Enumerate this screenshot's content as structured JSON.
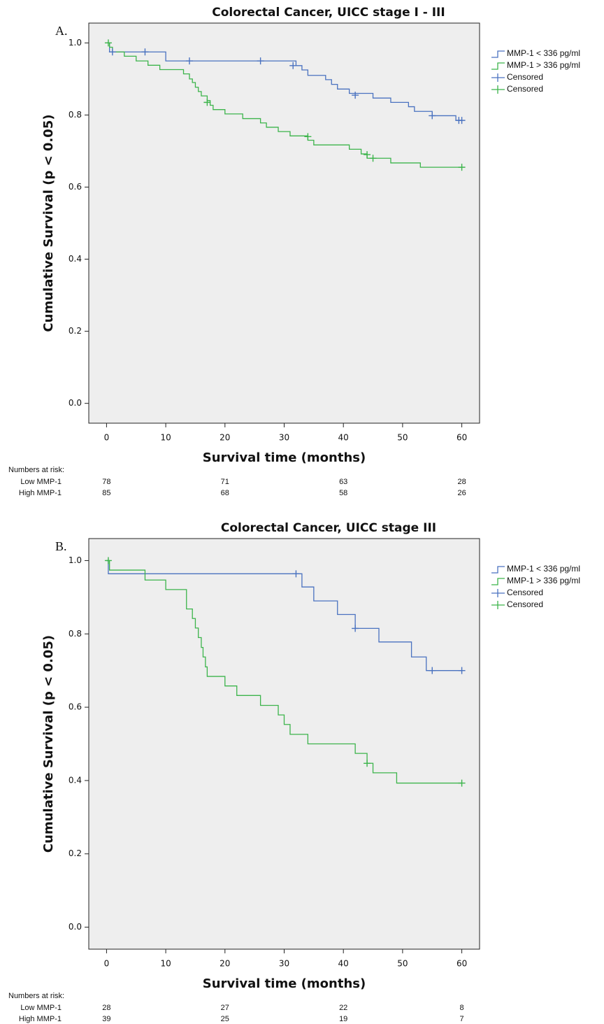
{
  "chart_data": [
    {
      "type": "line",
      "step": "post",
      "panel_label": "A.",
      "title": "Colorectal Cancer, UICC stage I - III",
      "x_label": "Survival time (months)",
      "y_label": "Cumulative Survival (p < 0.05)",
      "xlim": [
        -3,
        63
      ],
      "ylim": [
        -0.055,
        1.055
      ],
      "xticks": [
        0,
        10,
        20,
        30,
        40,
        50,
        60
      ],
      "yticks": [
        {
          "value": 0,
          "label": "0.0"
        },
        0.2,
        0.4,
        0.6,
        0.8,
        {
          "value": 1,
          "label": "1.0"
        }
      ],
      "grid": false,
      "legend": "right",
      "series": [
        {
          "name": "MMP-1 < 336 pg/ml",
          "color": "#4a72c0",
          "style": "step",
          "x": [
            0,
            0.5,
            10,
            32,
            33,
            34,
            37,
            38,
            39,
            41,
            45,
            48,
            51,
            52,
            55,
            59,
            60
          ],
          "values": [
            1.0,
            0.975,
            0.95,
            0.937,
            0.925,
            0.91,
            0.898,
            0.885,
            0.872,
            0.86,
            0.847,
            0.835,
            0.823,
            0.81,
            0.798,
            0.785,
            0.785
          ]
        },
        {
          "name": "MMP-1 > 336 pg/ml",
          "color": "#3cb44b",
          "style": "step",
          "x": [
            0,
            0.5,
            1,
            3,
            5,
            7,
            9,
            13,
            14,
            14.5,
            15,
            15.5,
            16,
            17,
            17.5,
            18,
            20,
            23,
            26,
            27,
            29,
            31,
            34,
            35,
            41,
            43,
            44,
            48,
            53,
            60
          ],
          "values": [
            1.0,
            0.988,
            0.975,
            0.963,
            0.95,
            0.938,
            0.926,
            0.914,
            0.9,
            0.89,
            0.877,
            0.865,
            0.853,
            0.84,
            0.827,
            0.815,
            0.803,
            0.79,
            0.778,
            0.766,
            0.754,
            0.742,
            0.73,
            0.717,
            0.705,
            0.692,
            0.68,
            0.667,
            0.655,
            0.655
          ]
        },
        {
          "name": "Censored",
          "color": "#4a72c0",
          "style": "censor",
          "x": [
            1,
            6.5,
            14,
            26,
            31.5,
            42,
            55,
            59.5,
            60
          ],
          "values": [
            0.975,
            0.975,
            0.95,
            0.95,
            0.937,
            0.855,
            0.798,
            0.785,
            0.785
          ]
        },
        {
          "name": "Censored",
          "color": "#3cb44b",
          "style": "censor",
          "x": [
            0.3,
            17,
            34,
            44,
            45,
            60
          ],
          "values": [
            1.0,
            0.835,
            0.74,
            0.69,
            0.68,
            0.655
          ]
        }
      ],
      "risk_table": {
        "title": "Numbers at risk:",
        "rows": [
          {
            "label": "Low MMP-1",
            "values": [
              78,
              71,
              63,
              28
            ]
          },
          {
            "label": "High MMP-1",
            "values": [
              85,
              68,
              58,
              26
            ]
          }
        ]
      }
    },
    {
      "type": "line",
      "step": "post",
      "panel_label": "B.",
      "title": "Colorectal Cancer, UICC stage III",
      "x_label": "Survival time (months)",
      "y_label": "Cumulative Survival (p < 0.05)",
      "xlim": [
        -3,
        63
      ],
      "ylim": [
        -0.06,
        1.06
      ],
      "xticks": [
        0,
        10,
        20,
        30,
        40,
        50,
        60
      ],
      "yticks": [
        {
          "value": 0,
          "label": "0.0"
        },
        0.2,
        0.4,
        0.6,
        0.8,
        {
          "value": 1,
          "label": "1.0"
        }
      ],
      "grid": false,
      "legend": "right",
      "series": [
        {
          "name": "MMP-1 < 336 pg/ml",
          "color": "#4a72c0",
          "style": "step",
          "x": [
            0,
            0.3,
            33,
            35,
            39,
            42,
            46,
            51.5,
            54,
            60
          ],
          "values": [
            1.0,
            0.964,
            0.928,
            0.89,
            0.853,
            0.815,
            0.778,
            0.737,
            0.7,
            0.7
          ]
        },
        {
          "name": "MMP-1 > 336 pg/ml",
          "color": "#3cb44b",
          "style": "step",
          "x": [
            0,
            0.5,
            6.5,
            10,
            13.5,
            14.5,
            15,
            15.5,
            16,
            16.3,
            16.7,
            17,
            20,
            22,
            26,
            29,
            30,
            31,
            34,
            42,
            44,
            45,
            49,
            60
          ],
          "values": [
            1.0,
            0.974,
            0.947,
            0.921,
            0.868,
            0.842,
            0.816,
            0.79,
            0.763,
            0.737,
            0.71,
            0.684,
            0.658,
            0.632,
            0.605,
            0.579,
            0.553,
            0.526,
            0.5,
            0.474,
            0.447,
            0.421,
            0.393,
            0.393
          ]
        },
        {
          "name": "Censored",
          "color": "#4a72c0",
          "style": "censor",
          "x": [
            32,
            42,
            55,
            60
          ],
          "values": [
            0.964,
            0.815,
            0.7,
            0.7
          ]
        },
        {
          "name": "Censored",
          "color": "#3cb44b",
          "style": "censor",
          "x": [
            0.3,
            44,
            60
          ],
          "values": [
            1.0,
            0.447,
            0.393
          ]
        }
      ],
      "risk_table": {
        "title": "Numbers at risk:",
        "rows": [
          {
            "label": "Low MMP-1",
            "values": [
              28,
              27,
              22,
              8
            ]
          },
          {
            "label": "High MMP-1",
            "values": [
              39,
              25,
              19,
              7
            ]
          }
        ]
      }
    }
  ]
}
